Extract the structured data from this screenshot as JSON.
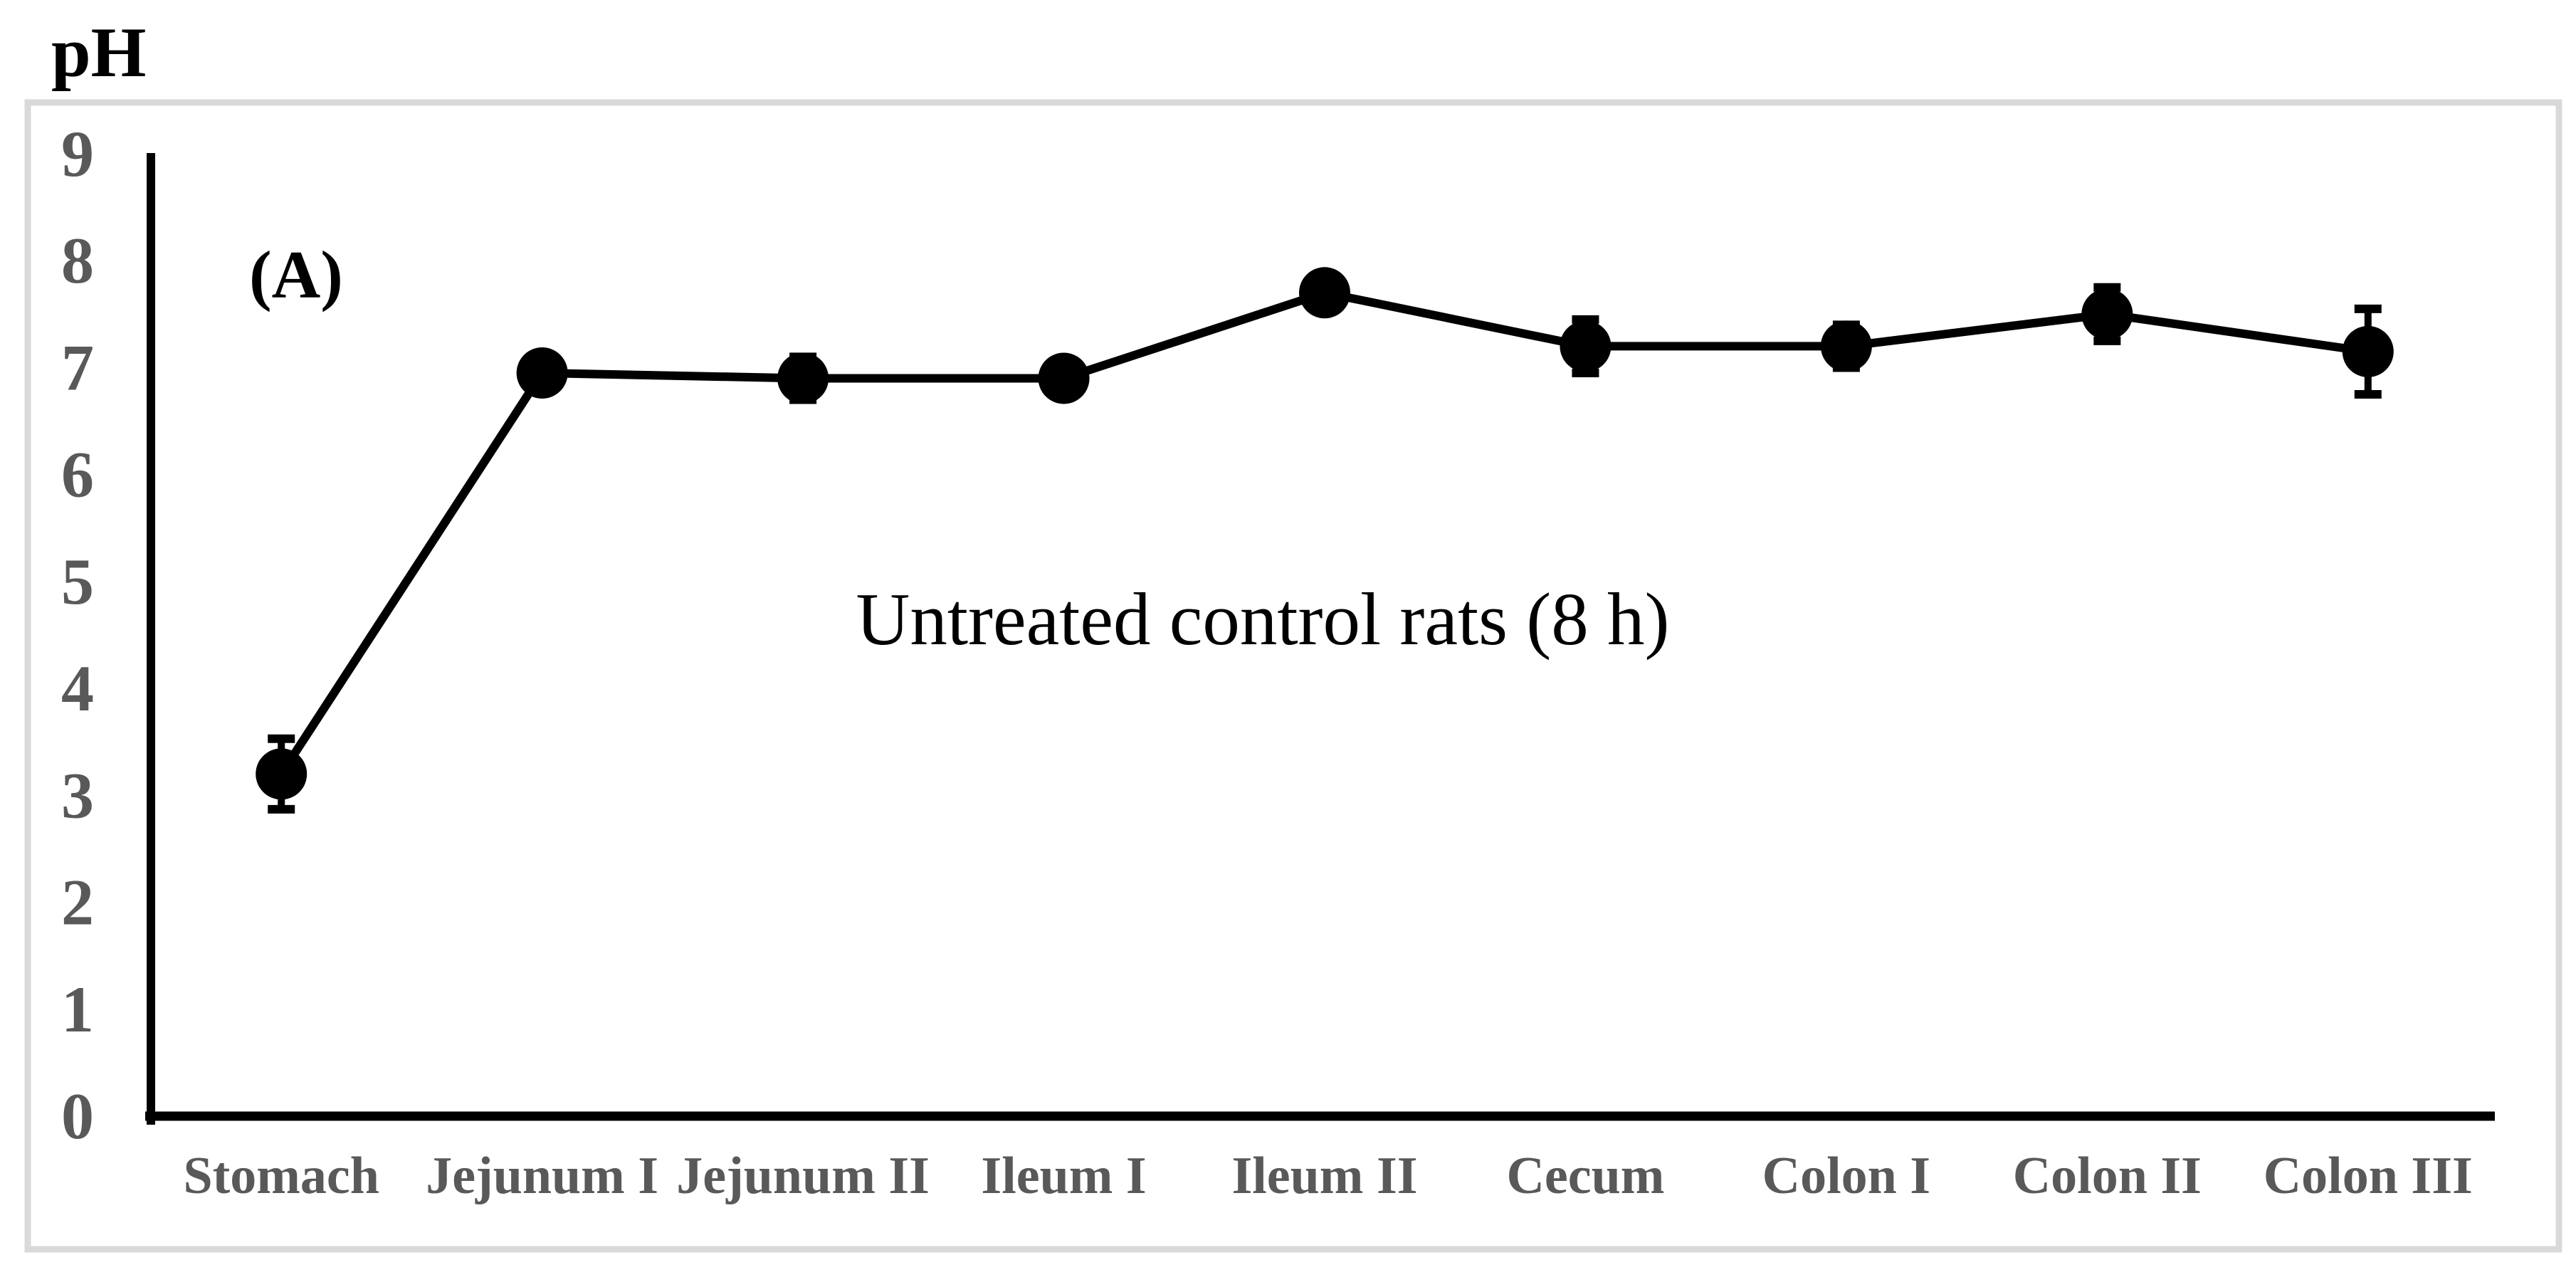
{
  "figure": {
    "background": "#ffffff",
    "border_color": "#d9d9d9"
  },
  "chart_data": {
    "type": "line",
    "title": "",
    "panel_label": "(A)",
    "annotation": "Untreated control rats (8 h)",
    "ylabel": "pH",
    "xlabel": "",
    "categories": [
      "Stomach",
      "Jejunum I",
      "Jejunum II",
      "Ileum I",
      "Ileum II",
      "Cecum",
      "Colon I",
      "Colon II",
      "Colon III"
    ],
    "series": [
      {
        "name": "pH",
        "values": [
          3.2,
          6.95,
          6.9,
          6.9,
          7.7,
          7.2,
          7.2,
          7.5,
          7.15
        ],
        "errors": [
          0.33,
          0,
          0.2,
          0,
          0,
          0.25,
          0.2,
          0.25,
          0.4
        ]
      }
    ],
    "ylim": [
      0,
      9
    ],
    "yticks": [
      0,
      1,
      2,
      3,
      4,
      5,
      6,
      7,
      8,
      9
    ],
    "grid": false,
    "legend": "none",
    "marker": "filled-circle",
    "colors": {
      "line": "#000000",
      "marker": "#000000",
      "error_bar": "#000000",
      "axis": "#000000",
      "tick_labels": "#595959",
      "category_labels": "#595959",
      "axis_title": "#000000",
      "panel_letter": "#000000",
      "annotation": "#000000",
      "figure_border": "#d9d9d9",
      "background": "#ffffff"
    }
  }
}
